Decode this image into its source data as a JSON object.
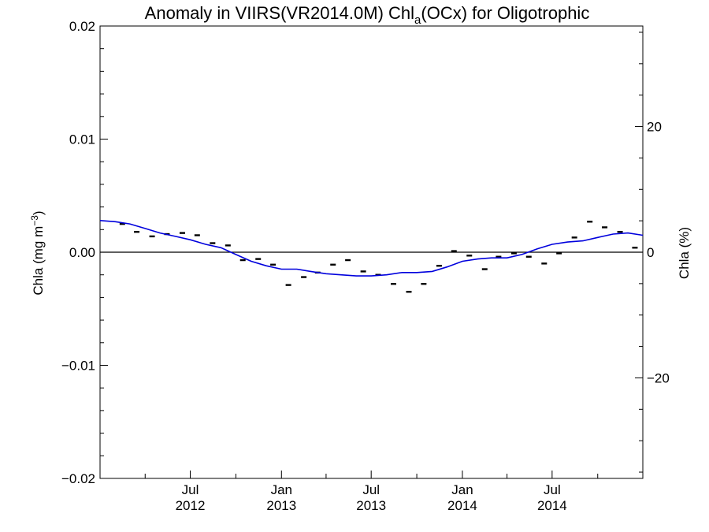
{
  "chart_data": {
    "type": "line",
    "title": {
      "prefix": "Anomaly in VIIRS(VR2014.0M) Chl",
      "subscript": "a",
      "suffix": "(OCx) for Oligotrophic"
    },
    "ylabel_left": {
      "main": "Chla (mg m",
      "sup": "−3",
      "close": ")"
    },
    "ylabel_right": "Chla (%)",
    "xlim": [
      "2012-01-01",
      "2014-12-31"
    ],
    "ylim": [
      -0.02,
      0.02
    ],
    "y2lim": [
      -36,
      36
    ],
    "x_ticks": [
      {
        "date": "2012-07-01",
        "month": "Jul",
        "year": "2012"
      },
      {
        "date": "2013-01-01",
        "month": "Jan",
        "year": "2013"
      },
      {
        "date": "2013-07-01",
        "month": "Jul",
        "year": "2013"
      },
      {
        "date": "2014-01-01",
        "month": "Jan",
        "year": "2014"
      },
      {
        "date": "2014-07-01",
        "month": "Jul",
        "year": "2014"
      }
    ],
    "y_ticks": [
      {
        "value": -0.02,
        "label": "−0.02"
      },
      {
        "value": -0.01,
        "label": "−0.01"
      },
      {
        "value": 0.0,
        "label": "0.00"
      },
      {
        "value": 0.01,
        "label": "0.01"
      },
      {
        "value": 0.02,
        "label": "0.02"
      }
    ],
    "y2_ticks": [
      {
        "value": -20,
        "label": "−20"
      },
      {
        "value": 0,
        "label": "0"
      },
      {
        "value": 20,
        "label": "20"
      }
    ],
    "zero_line": true,
    "series": [
      {
        "kind": "monthly-anomaly-dashes",
        "color": "#000000",
        "points": [
          {
            "x": "2012-02",
            "y": 0.0025
          },
          {
            "x": "2012-03",
            "y": 0.0018
          },
          {
            "x": "2012-04",
            "y": 0.0014
          },
          {
            "x": "2012-05",
            "y": 0.0016
          },
          {
            "x": "2012-06",
            "y": 0.0017
          },
          {
            "x": "2012-07",
            "y": 0.0015
          },
          {
            "x": "2012-08",
            "y": 0.0008
          },
          {
            "x": "2012-09",
            "y": 0.0006
          },
          {
            "x": "2012-10",
            "y": -0.0007
          },
          {
            "x": "2012-11",
            "y": -0.0006
          },
          {
            "x": "2012-12",
            "y": -0.0011
          },
          {
            "x": "2013-01",
            "y": -0.0029
          },
          {
            "x": "2013-02",
            "y": -0.0022
          },
          {
            "x": "2013-03",
            "y": -0.0018
          },
          {
            "x": "2013-04",
            "y": -0.0011
          },
          {
            "x": "2013-05",
            "y": -0.0007
          },
          {
            "x": "2013-06",
            "y": -0.0017
          },
          {
            "x": "2013-07",
            "y": -0.002
          },
          {
            "x": "2013-08",
            "y": -0.0028
          },
          {
            "x": "2013-09",
            "y": -0.0035
          },
          {
            "x": "2013-10",
            "y": -0.0028
          },
          {
            "x": "2013-11",
            "y": -0.0012
          },
          {
            "x": "2013-12",
            "y": 0.0001
          },
          {
            "x": "2014-01",
            "y": -0.0003
          },
          {
            "x": "2014-02",
            "y": -0.0015
          },
          {
            "x": "2014-03",
            "y": -0.0004
          },
          {
            "x": "2014-04",
            "y": -0.0001
          },
          {
            "x": "2014-05",
            "y": -0.0004
          },
          {
            "x": "2014-06",
            "y": -0.001
          },
          {
            "x": "2014-07",
            "y": -0.0001
          },
          {
            "x": "2014-08",
            "y": 0.0013
          },
          {
            "x": "2014-09",
            "y": 0.0027
          },
          {
            "x": "2014-10",
            "y": 0.0022
          },
          {
            "x": "2014-11",
            "y": 0.0018
          },
          {
            "x": "2014-12",
            "y": 0.0004
          }
        ]
      },
      {
        "kind": "smoothed-line",
        "color": "#0000dd",
        "points": [
          {
            "x": "2012-01-01",
            "y": 0.0028
          },
          {
            "x": "2012-02-01",
            "y": 0.0027
          },
          {
            "x": "2012-03-01",
            "y": 0.0025
          },
          {
            "x": "2012-04-01",
            "y": 0.0021
          },
          {
            "x": "2012-05-01",
            "y": 0.0017
          },
          {
            "x": "2012-06-01",
            "y": 0.0014
          },
          {
            "x": "2012-07-01",
            "y": 0.0011
          },
          {
            "x": "2012-08-01",
            "y": 0.0007
          },
          {
            "x": "2012-09-01",
            "y": 0.0004
          },
          {
            "x": "2012-10-01",
            "y": -0.0002
          },
          {
            "x": "2012-11-01",
            "y": -0.0008
          },
          {
            "x": "2012-12-01",
            "y": -0.0012
          },
          {
            "x": "2013-01-01",
            "y": -0.0015
          },
          {
            "x": "2013-02-01",
            "y": -0.0015
          },
          {
            "x": "2013-03-01",
            "y": -0.0017
          },
          {
            "x": "2013-04-01",
            "y": -0.0019
          },
          {
            "x": "2013-05-01",
            "y": -0.002
          },
          {
            "x": "2013-06-01",
            "y": -0.0021
          },
          {
            "x": "2013-07-01",
            "y": -0.0021
          },
          {
            "x": "2013-08-01",
            "y": -0.002
          },
          {
            "x": "2013-09-01",
            "y": -0.0018
          },
          {
            "x": "2013-10-01",
            "y": -0.0018
          },
          {
            "x": "2013-11-01",
            "y": -0.0017
          },
          {
            "x": "2013-12-01",
            "y": -0.0013
          },
          {
            "x": "2014-01-01",
            "y": -0.0008
          },
          {
            "x": "2014-02-01",
            "y": -0.0006
          },
          {
            "x": "2014-03-01",
            "y": -0.0005
          },
          {
            "x": "2014-04-01",
            "y": -0.0005
          },
          {
            "x": "2014-05-01",
            "y": -0.0002
          },
          {
            "x": "2014-06-01",
            "y": 0.0003
          },
          {
            "x": "2014-07-01",
            "y": 0.0007
          },
          {
            "x": "2014-08-01",
            "y": 0.0009
          },
          {
            "x": "2014-09-01",
            "y": 0.001
          },
          {
            "x": "2014-10-01",
            "y": 0.0013
          },
          {
            "x": "2014-11-01",
            "y": 0.0016
          },
          {
            "x": "2014-12-01",
            "y": 0.0017
          },
          {
            "x": "2014-12-31",
            "y": 0.0015
          }
        ]
      }
    ]
  }
}
